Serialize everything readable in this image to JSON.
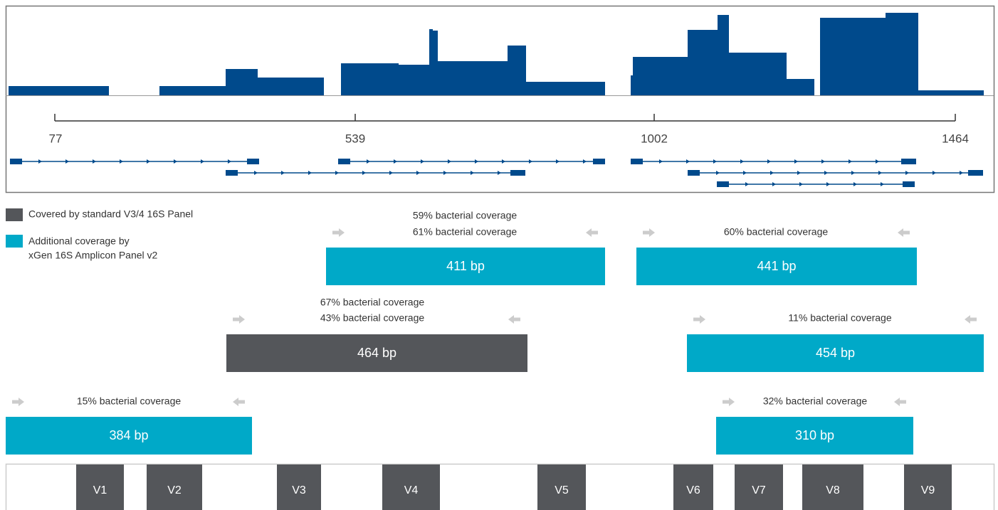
{
  "axis_labels": [
    "77",
    "539",
    "1002",
    "1464"
  ],
  "legend": [
    {
      "lines": [
        "Covered by standard V3/4 16S Panel"
      ]
    },
    {
      "lines": [
        "Additional coverage by",
        "xGen 16S Amplicon Panel v2"
      ]
    }
  ],
  "amplicons": [
    {
      "coverage": [
        "59% bacterial coverage",
        "61% bacterial coverage"
      ],
      "size": "411 bp"
    },
    {
      "coverage": [
        "60% bacterial coverage"
      ],
      "size": "441 bp"
    },
    {
      "coverage": [
        "67% bacterial coverage",
        "43% bacterial coverage"
      ],
      "size": "464 bp"
    },
    {
      "coverage": [
        "11% bacterial coverage"
      ],
      "size": "454 bp"
    },
    {
      "coverage": [
        "15% bacterial coverage"
      ],
      "size": "384 bp"
    },
    {
      "coverage": [
        "32% bacterial coverage"
      ],
      "size": "310 bp"
    }
  ],
  "regions": [
    "V1",
    "V2",
    "V3",
    "V4",
    "V5",
    "V6",
    "V7",
    "V8",
    "V9"
  ]
}
